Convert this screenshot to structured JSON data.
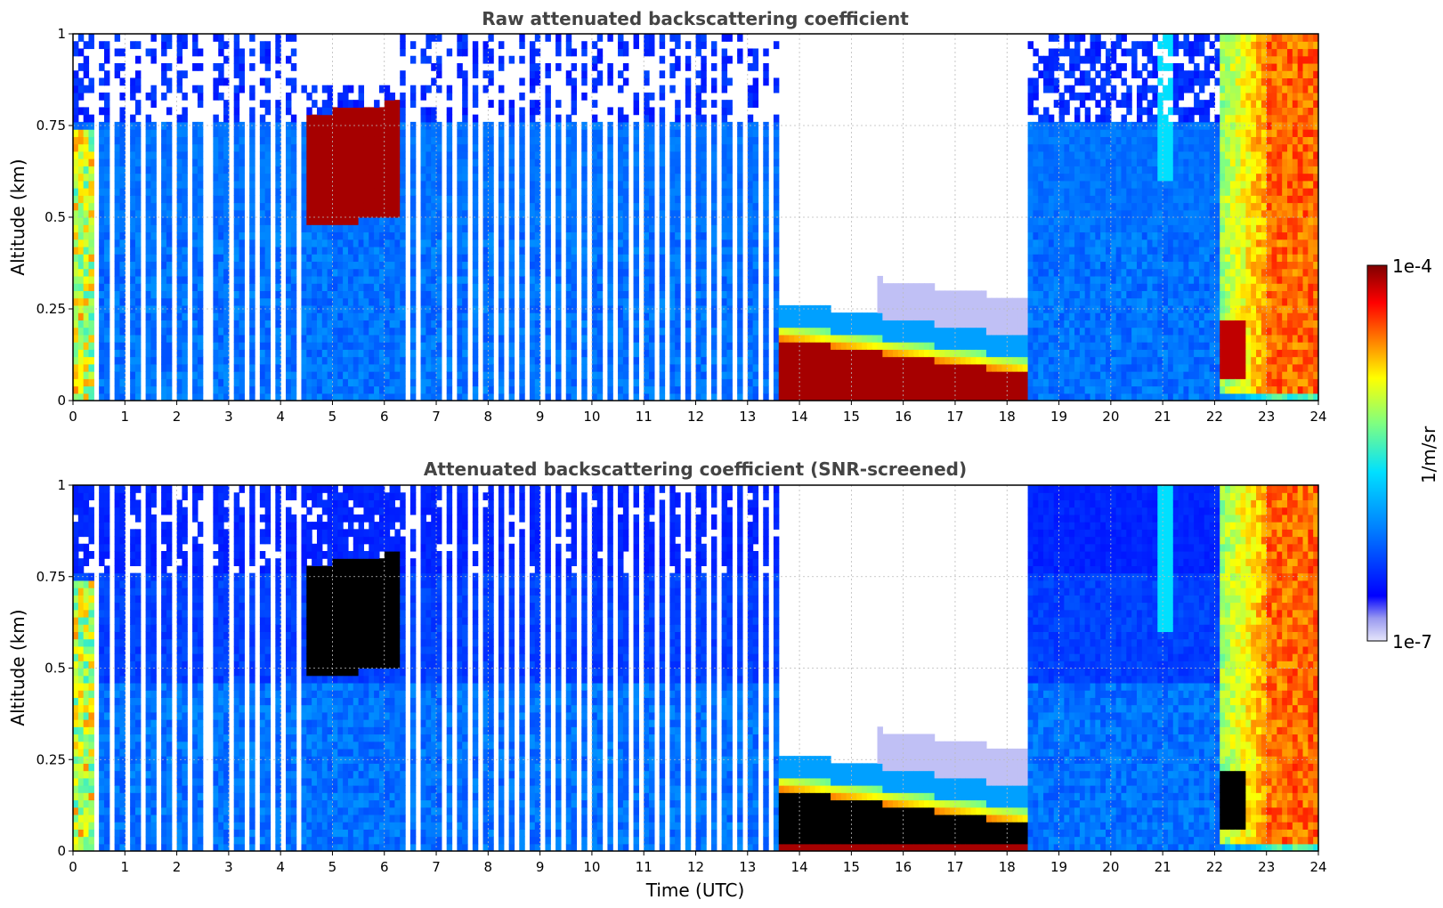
{
  "chart_data": [
    {
      "type": "heatmap",
      "title": "Raw attenuated backscattering coefficient",
      "xlabel": "",
      "ylabel": "Altitude (km)",
      "xlim": [
        0,
        24
      ],
      "ylim": [
        0,
        1
      ],
      "x_ticks": [
        "0",
        "1",
        "2",
        "3",
        "4",
        "5",
        "6",
        "7",
        "8",
        "9",
        "10",
        "11",
        "12",
        "13",
        "14",
        "15",
        "16",
        "17",
        "18",
        "19",
        "20",
        "21",
        "22",
        "23",
        "24"
      ],
      "y_ticks": [
        "0",
        "0.25",
        "0.5",
        "0.75",
        "1"
      ],
      "grid": true,
      "colorscale": "jet",
      "description_bands": [
        {
          "x_range": [
            0,
            13.6
          ],
          "feature": "intermittent vertical profiles with gaps; background low values, noisy above 0.75 km"
        },
        {
          "x_range": [
            4.5,
            6.3
          ],
          "y_range": [
            0.45,
            0.85
          ],
          "feature": "strong layer near 1e-4"
        },
        {
          "x_range": [
            13.6,
            18.4
          ],
          "y_range": [
            0,
            0.25
          ],
          "feature": "strong near-surface layer near 1e-4, empty above"
        },
        {
          "x_range": [
            18.4,
            22.1
          ],
          "feature": "continuous low-value profile"
        },
        {
          "x_range": [
            22.1,
            24
          ],
          "feature": "high values over full altitude range"
        }
      ]
    },
    {
      "type": "heatmap",
      "title": "Attenuated backscattering coefficient (SNR-screened)",
      "xlabel": "Time (UTC)",
      "ylabel": "Altitude (km)",
      "xlim": [
        0,
        24
      ],
      "ylim": [
        0,
        1
      ],
      "x_ticks": [
        "0",
        "1",
        "2",
        "3",
        "4",
        "5",
        "6",
        "7",
        "8",
        "9",
        "10",
        "11",
        "12",
        "13",
        "14",
        "15",
        "16",
        "17",
        "18",
        "19",
        "20",
        "21",
        "22",
        "23",
        "24"
      ],
      "y_ticks": [
        "0",
        "0.25",
        "0.5",
        "0.75",
        "1"
      ],
      "grid": true,
      "colorscale": "jet",
      "saturated_color": "#000000"
    }
  ],
  "colorbar": {
    "label": "1/m/sr",
    "max_label": "1e-4",
    "min_label": "1e-7",
    "colors": [
      "#e6e6fa",
      "#0000ff",
      "#0080ff",
      "#00ffff",
      "#80ff80",
      "#ffff00",
      "#ff8000",
      "#ff0000",
      "#800000"
    ]
  }
}
